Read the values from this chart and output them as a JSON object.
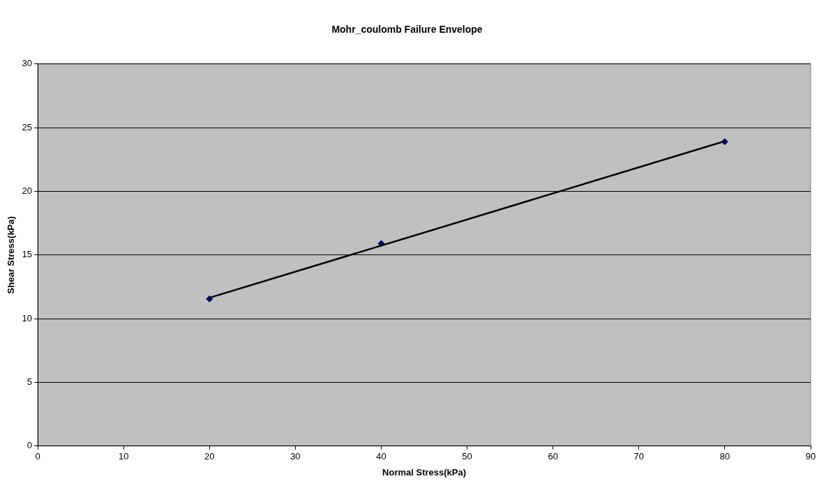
{
  "chart_data": {
    "type": "scatter",
    "title": "Mohr_coulomb Failure Envelope",
    "xlabel": "Normal Stress(kPa)",
    "ylabel": "Shear Stress(kPa)",
    "xlim": [
      0,
      90
    ],
    "xticks": [
      0,
      10,
      20,
      30,
      40,
      50,
      60,
      70,
      80,
      90
    ],
    "ylim": [
      0,
      30
    ],
    "yticks": [
      0,
      5,
      10,
      15,
      20,
      25,
      30
    ],
    "grid": "y",
    "legend": false,
    "series": [
      {
        "type": "scatter",
        "x": [
          20,
          40,
          80
        ],
        "values": [
          11.55,
          15.9,
          23.9
        ],
        "color": "#000080",
        "marker": "diamond"
      },
      {
        "type": "line",
        "x": [
          20,
          80
        ],
        "values": [
          11.64,
          23.94
        ],
        "color": "#000000",
        "marker": "none",
        "line_style": "solid"
      }
    ]
  }
}
